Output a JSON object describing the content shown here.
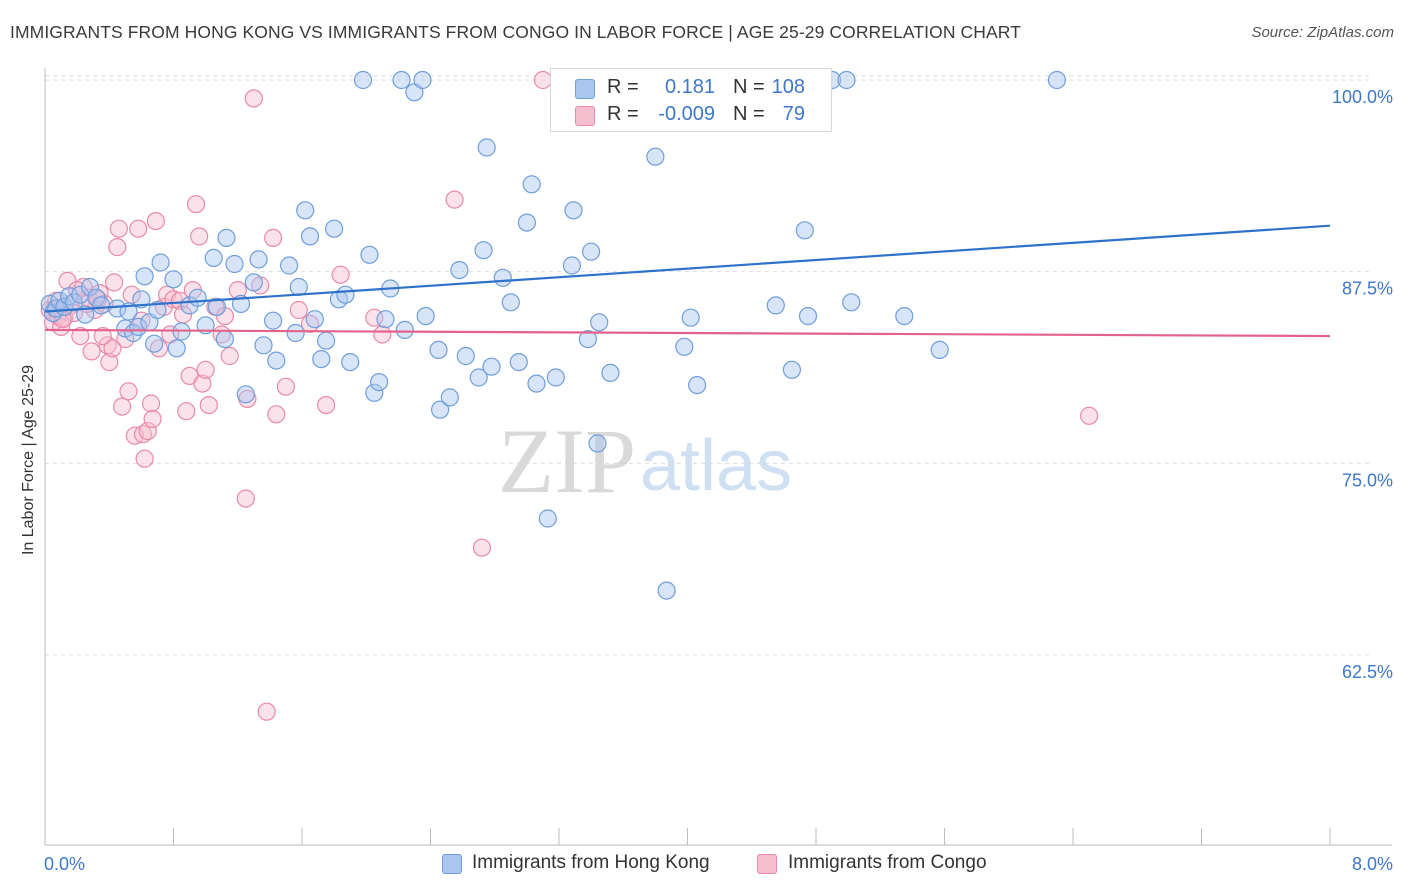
{
  "title": "IMMIGRANTS FROM HONG KONG VS IMMIGRANTS FROM CONGO IN LABOR FORCE | AGE 25-29 CORRELATION CHART",
  "source": "Source: ZipAtlas.com",
  "watermark": {
    "zip": "ZIP",
    "atlas": "atlas"
  },
  "legend": {
    "rows": [
      {
        "r_label": "R =",
        "r_value": "0.181",
        "n_label": "N =",
        "n_value": "108"
      },
      {
        "r_label": "R =",
        "r_value": "-0.009",
        "n_label": "N =",
        "n_value": "79"
      }
    ]
  },
  "bottom_legend": [
    "Immigrants from Hong Kong",
    "Immigrants from Congo"
  ],
  "colors": {
    "series1_fill": "#a9c6ef",
    "series1_stroke": "#6e9edc",
    "series1_line": "#2f72c9",
    "series2_fill": "#f6bfd0",
    "series2_stroke": "#e98aa8",
    "series2_line": "#e4628a",
    "tick_label": "#3d78c9",
    "grid": "#dddddd"
  },
  "chart_data": {
    "type": "scatter",
    "title": "IMMIGRANTS FROM HONG KONG VS IMMIGRANTS FROM CONGO IN LABOR FORCE | AGE 25-29 CORRELATION CHART",
    "xlabel": "",
    "ylabel": "In Labor Force | Age 25-29",
    "xlim": [
      0,
      8
    ],
    "ylim": [
      50,
      100
    ],
    "x_tick_labels": [
      "0.0%",
      "8.0%"
    ],
    "y_ticks": [
      62.5,
      75.0,
      87.5,
      100.0
    ],
    "y_tick_labels": [
      "62.5%",
      "75.0%",
      "87.5%",
      "100.0%"
    ],
    "grid": true,
    "legend_position": "top-center",
    "series": [
      {
        "name": "Immigrants from Hong Kong",
        "stats": {
          "R": 0.181,
          "N": 108
        },
        "trend": {
          "x": [
            0,
            8
          ],
          "y": [
            84.9,
            90.5
          ]
        },
        "points": [
          [
            0.03,
            85.4
          ],
          [
            0.05,
            84.8
          ],
          [
            0.07,
            85.1
          ],
          [
            0.09,
            85.6
          ],
          [
            0.12,
            85.2
          ],
          [
            0.15,
            85.9
          ],
          [
            0.18,
            85.5
          ],
          [
            0.22,
            86.0
          ],
          [
            0.25,
            84.7
          ],
          [
            0.28,
            86.5
          ],
          [
            0.32,
            85.8
          ],
          [
            0.35,
            85.3
          ],
          [
            0.45,
            85.1
          ],
          [
            0.5,
            83.8
          ],
          [
            0.52,
            84.9
          ],
          [
            0.55,
            83.5
          ],
          [
            0.58,
            83.9
          ],
          [
            0.6,
            85.7
          ],
          [
            0.62,
            87.2
          ],
          [
            0.65,
            84.2
          ],
          [
            0.68,
            82.8
          ],
          [
            0.7,
            85.0
          ],
          [
            0.72,
            88.1
          ],
          [
            0.8,
            87.0
          ],
          [
            0.82,
            82.5
          ],
          [
            0.85,
            83.6
          ],
          [
            0.9,
            85.3
          ],
          [
            0.95,
            85.8
          ],
          [
            1.0,
            84.0
          ],
          [
            1.05,
            88.4
          ],
          [
            1.07,
            85.2
          ],
          [
            1.12,
            83.1
          ],
          [
            1.13,
            89.7
          ],
          [
            1.18,
            88.0
          ],
          [
            1.22,
            85.4
          ],
          [
            1.25,
            79.5
          ],
          [
            1.3,
            86.8
          ],
          [
            1.33,
            88.3
          ],
          [
            1.36,
            82.7
          ],
          [
            1.42,
            84.3
          ],
          [
            1.44,
            81.7
          ],
          [
            1.52,
            87.9
          ],
          [
            1.56,
            83.5
          ],
          [
            1.58,
            86.5
          ],
          [
            1.62,
            91.5
          ],
          [
            1.65,
            89.8
          ],
          [
            1.68,
            84.4
          ],
          [
            1.72,
            81.8
          ],
          [
            1.75,
            83.0
          ],
          [
            1.8,
            90.3
          ],
          [
            1.83,
            85.7
          ],
          [
            1.87,
            86.0
          ],
          [
            1.9,
            81.6
          ],
          [
            1.98,
            100.0
          ],
          [
            2.02,
            88.6
          ],
          [
            2.05,
            79.6
          ],
          [
            2.08,
            80.3
          ],
          [
            2.12,
            84.4
          ],
          [
            2.15,
            86.4
          ],
          [
            2.22,
            100.0
          ],
          [
            2.24,
            83.7
          ],
          [
            2.3,
            99.2
          ],
          [
            2.35,
            100.0
          ],
          [
            2.37,
            84.6
          ],
          [
            2.45,
            82.4
          ],
          [
            2.46,
            78.5
          ],
          [
            2.52,
            79.3
          ],
          [
            2.58,
            87.6
          ],
          [
            2.62,
            82.0
          ],
          [
            2.7,
            80.6
          ],
          [
            2.73,
            88.9
          ],
          [
            2.75,
            95.6
          ],
          [
            2.78,
            81.3
          ],
          [
            2.85,
            87.1
          ],
          [
            2.9,
            85.5
          ],
          [
            2.95,
            81.6
          ],
          [
            3.0,
            90.7
          ],
          [
            3.03,
            93.2
          ],
          [
            3.06,
            80.2
          ],
          [
            3.13,
            71.4
          ],
          [
            3.18,
            80.6
          ],
          [
            3.28,
            87.9
          ],
          [
            3.29,
            91.5
          ],
          [
            3.38,
            83.1
          ],
          [
            3.4,
            88.8
          ],
          [
            3.44,
            76.3
          ],
          [
            3.45,
            84.2
          ],
          [
            3.52,
            80.9
          ],
          [
            3.55,
            100.0
          ],
          [
            3.8,
            95.0
          ],
          [
            3.87,
            66.7
          ],
          [
            3.98,
            82.6
          ],
          [
            4.02,
            84.5
          ],
          [
            4.06,
            80.1
          ],
          [
            4.55,
            85.3
          ],
          [
            4.65,
            81.1
          ],
          [
            4.73,
            90.2
          ],
          [
            4.75,
            84.6
          ],
          [
            4.9,
            100.0
          ],
          [
            4.99,
            100.0
          ],
          [
            5.02,
            85.5
          ],
          [
            5.35,
            84.6
          ],
          [
            5.57,
            82.4
          ],
          [
            6.3,
            100.0
          ]
        ]
      },
      {
        "name": "Immigrants from Congo",
        "stats": {
          "R": -0.009,
          "N": 79
        },
        "trend": {
          "x": [
            0,
            8
          ],
          "y": [
            83.7,
            83.3
          ]
        },
        "points": [
          [
            0.03,
            85.0
          ],
          [
            0.05,
            84.2
          ],
          [
            0.07,
            85.6
          ],
          [
            0.08,
            84.6
          ],
          [
            0.1,
            83.9
          ],
          [
            0.12,
            84.5
          ],
          [
            0.14,
            86.9
          ],
          [
            0.16,
            85.3
          ],
          [
            0.18,
            84.8
          ],
          [
            0.22,
            83.3
          ],
          [
            0.24,
            86.5
          ],
          [
            0.27,
            85.8
          ],
          [
            0.29,
            82.3
          ],
          [
            0.31,
            85.0
          ],
          [
            0.34,
            86.1
          ],
          [
            0.37,
            85.4
          ],
          [
            0.39,
            82.7
          ],
          [
            0.4,
            81.6
          ],
          [
            0.42,
            82.5
          ],
          [
            0.43,
            86.8
          ],
          [
            0.45,
            89.1
          ],
          [
            0.46,
            90.3
          ],
          [
            0.48,
            78.7
          ],
          [
            0.5,
            83.1
          ],
          [
            0.52,
            79.7
          ],
          [
            0.54,
            86.0
          ],
          [
            0.56,
            76.8
          ],
          [
            0.58,
            90.3
          ],
          [
            0.6,
            84.3
          ],
          [
            0.61,
            76.9
          ],
          [
            0.62,
            75.3
          ],
          [
            0.64,
            77.1
          ],
          [
            0.66,
            78.9
          ],
          [
            0.67,
            77.9
          ],
          [
            0.69,
            90.8
          ],
          [
            0.71,
            82.5
          ],
          [
            0.74,
            85.2
          ],
          [
            0.76,
            86.0
          ],
          [
            0.78,
            83.4
          ],
          [
            0.8,
            85.7
          ],
          [
            0.84,
            85.6
          ],
          [
            0.86,
            84.7
          ],
          [
            0.88,
            78.4
          ],
          [
            0.9,
            80.7
          ],
          [
            0.92,
            86.3
          ],
          [
            0.94,
            91.9
          ],
          [
            0.96,
            89.8
          ],
          [
            0.98,
            80.2
          ],
          [
            1.0,
            81.1
          ],
          [
            1.02,
            78.8
          ],
          [
            1.06,
            85.2
          ],
          [
            1.1,
            83.4
          ],
          [
            1.12,
            84.6
          ],
          [
            1.15,
            82.0
          ],
          [
            1.2,
            86.3
          ],
          [
            1.25,
            72.7
          ],
          [
            1.26,
            79.2
          ],
          [
            1.3,
            98.8
          ],
          [
            1.34,
            86.6
          ],
          [
            1.38,
            58.8
          ],
          [
            1.42,
            89.7
          ],
          [
            1.44,
            78.2
          ],
          [
            1.5,
            80.0
          ],
          [
            1.58,
            85.0
          ],
          [
            1.65,
            84.1
          ],
          [
            1.75,
            78.8
          ],
          [
            1.84,
            87.3
          ],
          [
            2.05,
            84.5
          ],
          [
            2.1,
            83.4
          ],
          [
            2.55,
            92.2
          ],
          [
            2.72,
            69.5
          ],
          [
            3.1,
            100.0
          ],
          [
            6.5,
            78.1
          ],
          [
            0.06,
            85.1
          ],
          [
            0.11,
            84.4
          ],
          [
            0.2,
            86.3
          ],
          [
            0.26,
            85.4
          ],
          [
            0.33,
            85.7
          ],
          [
            0.36,
            83.3
          ]
        ]
      }
    ]
  }
}
